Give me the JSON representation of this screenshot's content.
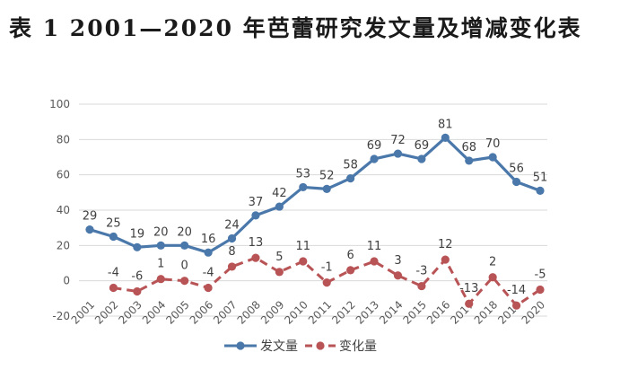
{
  "title": "表 1   2001—2020 年芭蕾研究发文量及增减变化表",
  "colors": {
    "series_a": "#4a78aa",
    "series_b": "#b85456",
    "grid": "#d9d9d9",
    "text": "#595959"
  },
  "chart_data": {
    "type": "line",
    "title": "表 1   2001—2020 年芭蕾研究发文量及增减变化表",
    "categories": [
      "2001",
      "2002",
      "2003",
      "2004",
      "2005",
      "2006",
      "2007",
      "2008",
      "2009",
      "2010",
      "2011",
      "2012",
      "2013",
      "2014",
      "2015",
      "2016",
      "2017",
      "2018",
      "2019",
      "2020"
    ],
    "y_ticks": [
      "100",
      "80",
      "60",
      "40",
      "20",
      "0",
      "-20"
    ],
    "ylim": [
      -20,
      100
    ],
    "grid": "horizontal",
    "legend": "bottom",
    "series": [
      {
        "name": "发文量",
        "style": "solid-circle",
        "values": [
          29,
          25,
          19,
          20,
          20,
          16,
          24,
          37,
          42,
          53,
          52,
          58,
          69,
          72,
          69,
          81,
          68,
          70,
          56,
          51
        ],
        "labels": [
          "29",
          "25",
          "19",
          "20",
          "20",
          "16",
          "24",
          "37",
          "42",
          "53",
          "52",
          "58",
          "69",
          "72",
          "69",
          "81",
          "68",
          "70",
          "56",
          "51"
        ]
      },
      {
        "name": "变化量",
        "style": "dashed-circle",
        "values": [
          null,
          -4,
          -6,
          1,
          0,
          -4,
          8,
          13,
          5,
          11,
          -1,
          6,
          11,
          3,
          -3,
          12,
          -13,
          2,
          -14,
          -5
        ],
        "labels": [
          "",
          "-4",
          "-6",
          "1",
          "0",
          "-4",
          "8",
          "13",
          "5",
          "11",
          "-1",
          "6",
          "11",
          "3",
          "-3",
          "12",
          "-13",
          "2",
          "-14",
          "-5"
        ]
      }
    ]
  }
}
